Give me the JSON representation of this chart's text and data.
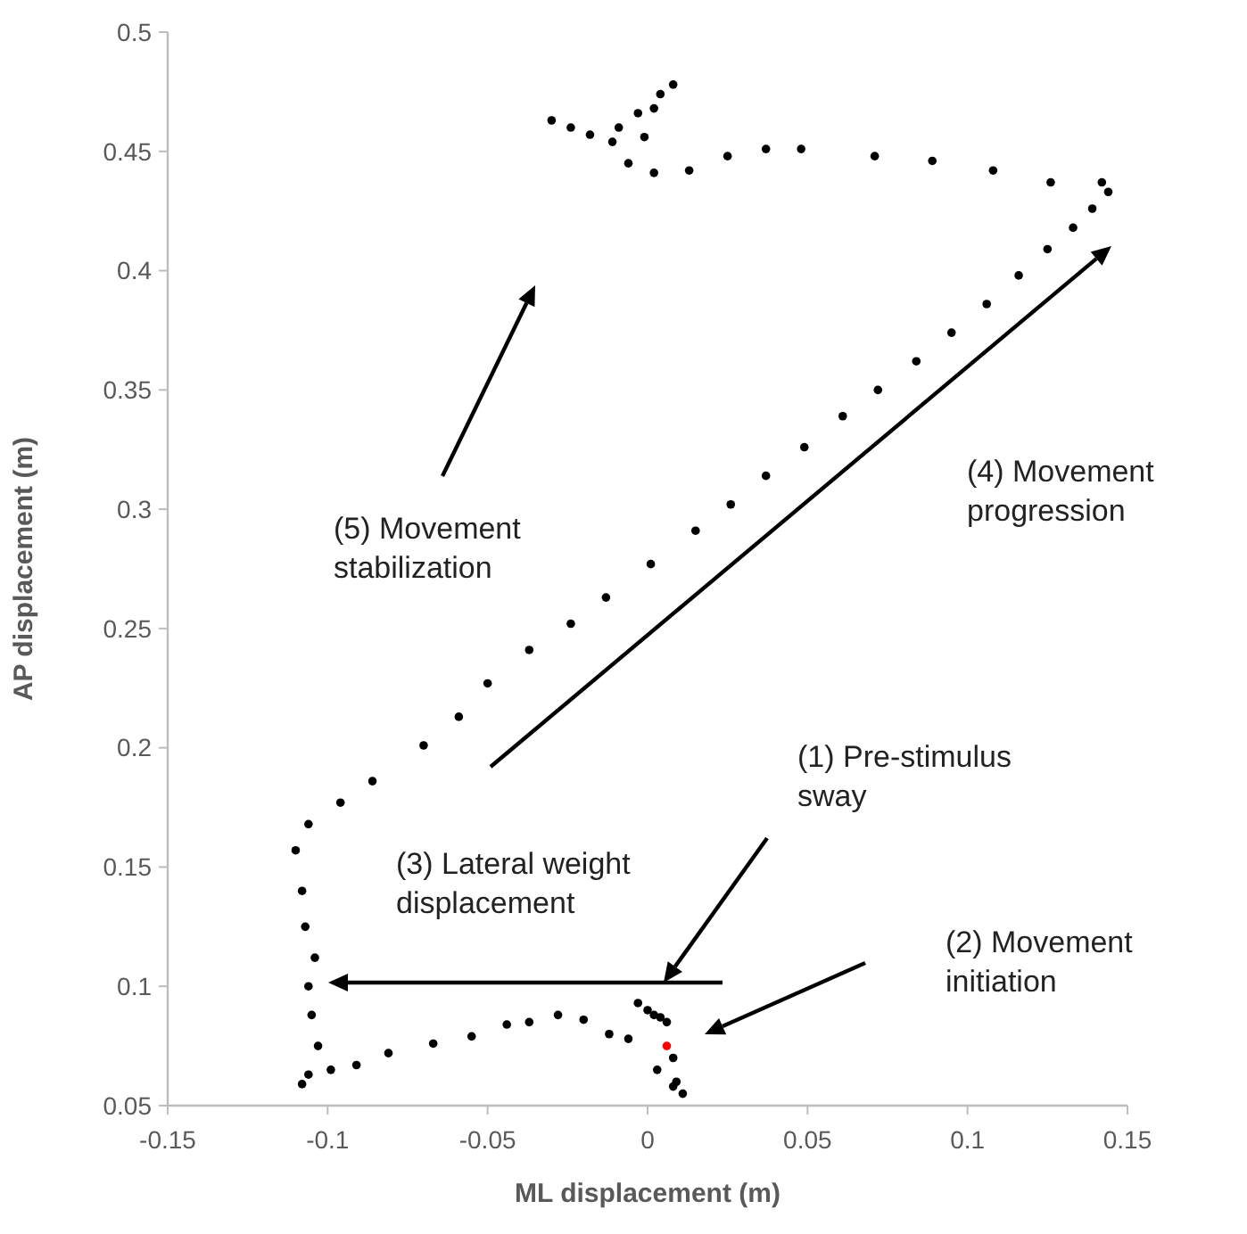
{
  "chart_data": {
    "type": "scatter",
    "xlabel": "ML displacement (m)",
    "ylabel": "AP displacement (m)",
    "xlim": [
      -0.15,
      0.15
    ],
    "ylim": [
      0.05,
      0.5
    ],
    "xticks": [
      -0.15,
      -0.1,
      -0.05,
      0,
      0.05,
      0.1,
      0.15
    ],
    "yticks": [
      0.05,
      0.1,
      0.15,
      0.2,
      0.25,
      0.3,
      0.35,
      0.4,
      0.45,
      0.5
    ],
    "grid": false,
    "marker": "circle",
    "series": [
      {
        "color": "#000000",
        "x": [
          -0.003,
          0,
          0.002,
          0.004,
          0.006,
          0.008,
          0.011,
          0.009,
          0.008,
          0.003,
          -0.006,
          -0.012,
          -0.02,
          -0.028,
          -0.037,
          -0.044,
          -0.055,
          -0.067,
          -0.081,
          -0.091,
          -0.099,
          -0.108,
          -0.106,
          -0.103,
          -0.105,
          -0.106,
          -0.104,
          -0.107,
          -0.108,
          -0.11,
          -0.106,
          -0.096,
          -0.086,
          -0.07,
          -0.059,
          -0.05,
          -0.037,
          -0.024,
          -0.013,
          0.001,
          0.015,
          0.026,
          0.037,
          0.049,
          0.061,
          0.072,
          0.084,
          0.095,
          0.106,
          0.116,
          0.125,
          0.133,
          0.139,
          0.144,
          0.142,
          0.126,
          0.108,
          0.089,
          0.071,
          0.048,
          0.037,
          0.025,
          0.013,
          0.002,
          -0.006,
          -0.011,
          -0.018,
          -0.024,
          -0.03,
          -0.009,
          -0.003,
          -0.001,
          0.002,
          0.004,
          0.008
        ],
        "values": [
          0.093,
          0.09,
          0.088,
          0.087,
          0.085,
          0.07,
          0.055,
          0.06,
          0.058,
          0.065,
          0.078,
          0.08,
          0.086,
          0.088,
          0.085,
          0.084,
          0.079,
          0.076,
          0.072,
          0.067,
          0.065,
          0.059,
          0.063,
          0.075,
          0.088,
          0.1,
          0.112,
          0.125,
          0.14,
          0.157,
          0.168,
          0.177,
          0.186,
          0.201,
          0.213,
          0.227,
          0.241,
          0.252,
          0.263,
          0.277,
          0.291,
          0.302,
          0.314,
          0.326,
          0.339,
          0.35,
          0.362,
          0.374,
          0.386,
          0.398,
          0.409,
          0.418,
          0.426,
          0.433,
          0.437,
          0.437,
          0.442,
          0.446,
          0.448,
          0.451,
          0.451,
          0.448,
          0.442,
          0.441,
          0.445,
          0.454,
          0.457,
          0.46,
          0.463,
          0.46,
          0.466,
          0.456,
          0.468,
          0.474,
          0.478
        ]
      },
      {
        "color": "#ff0000",
        "x": [
          0.006
        ],
        "values": [
          0.075
        ]
      }
    ],
    "annotations": [
      "(1) Pre-stimulus\nsway",
      "(2) Movement\ninitiation",
      "(3) Lateral weight\ndisplacement",
      "(4) Movement\nprogression",
      "(5) Movement\nstabilization"
    ]
  }
}
